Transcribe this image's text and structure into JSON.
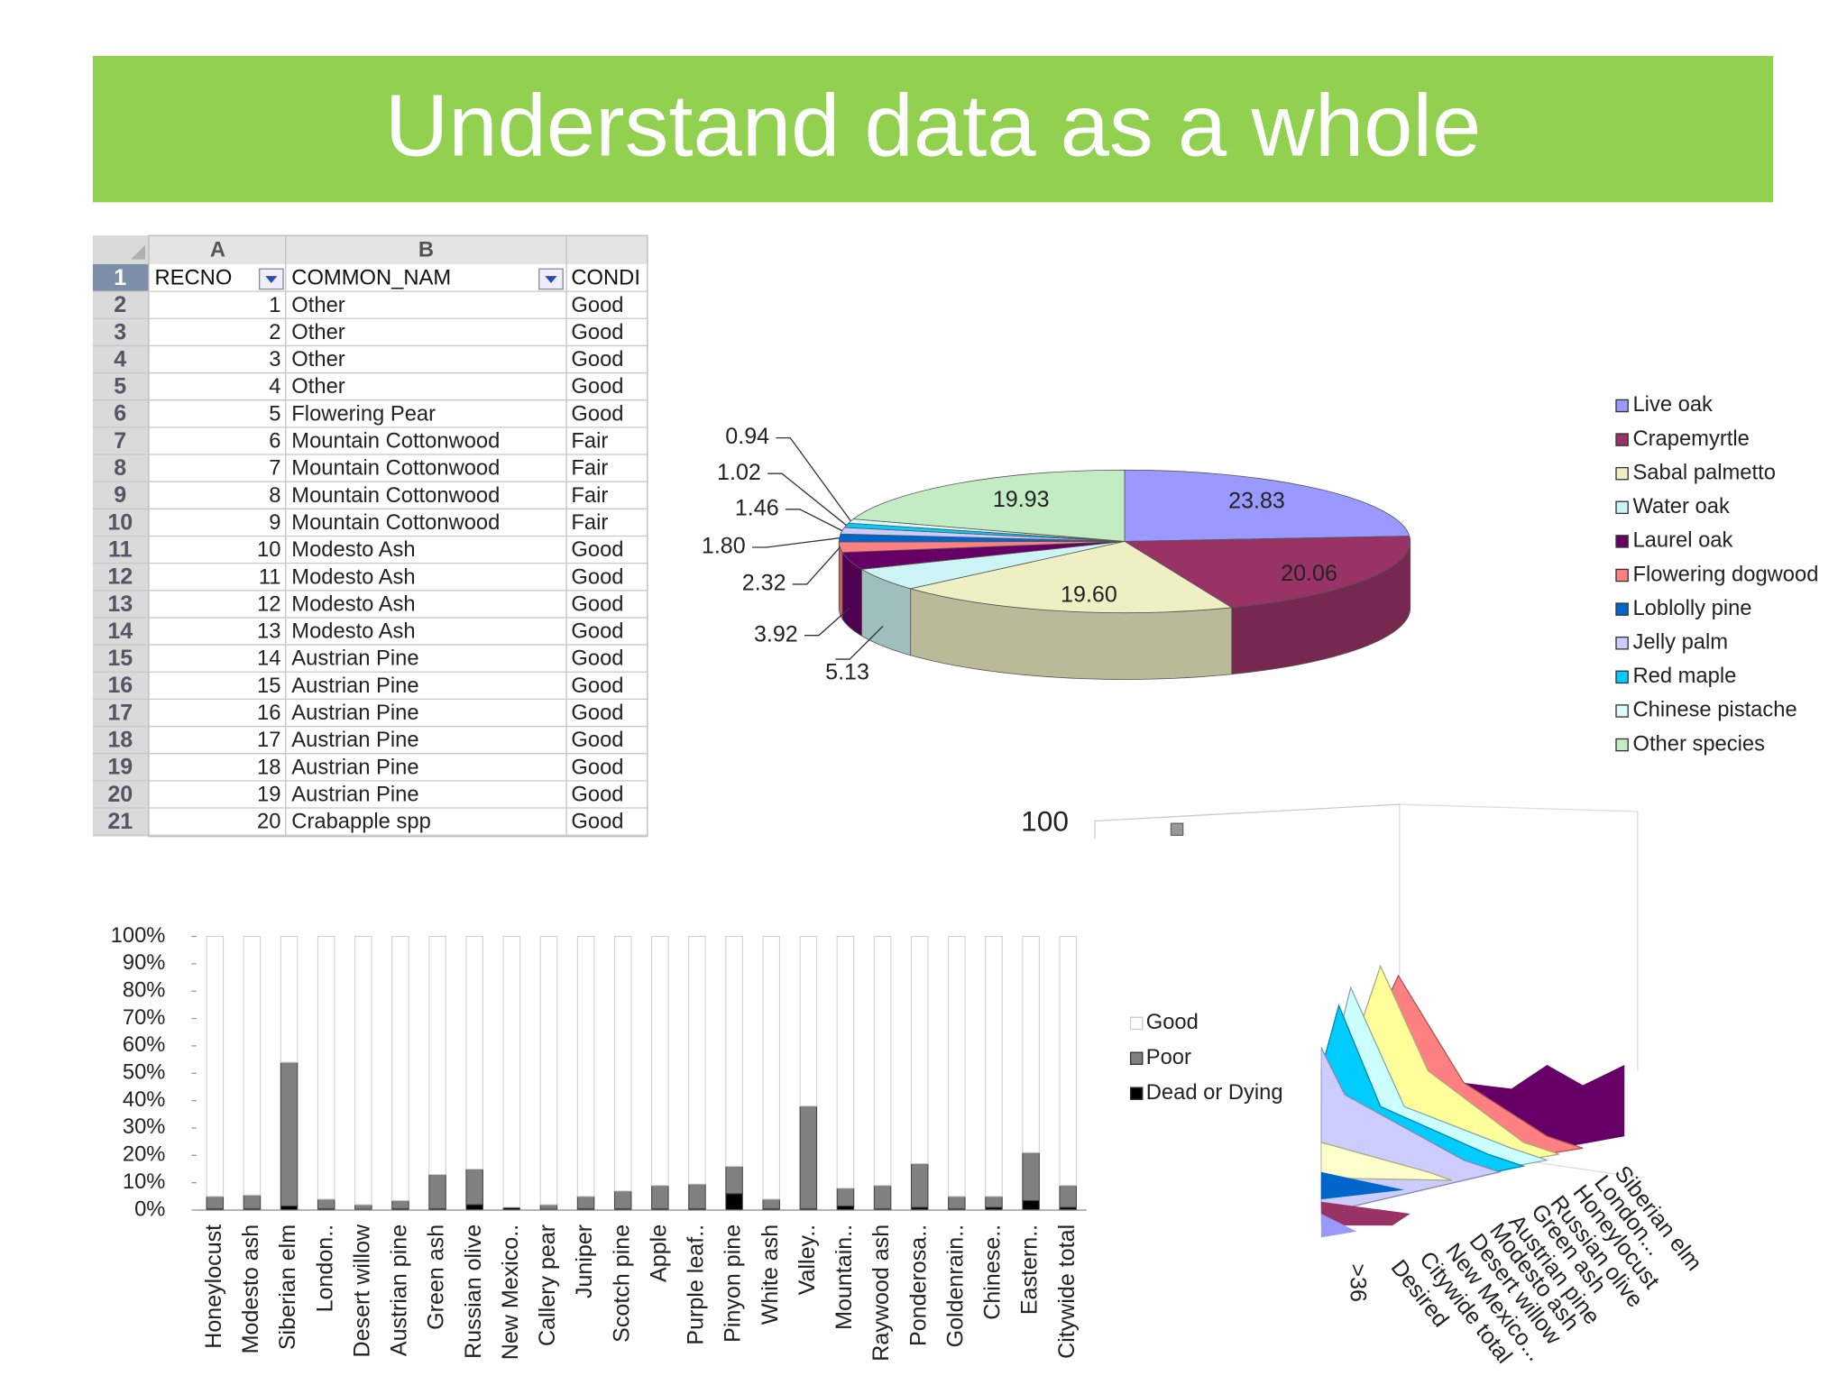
{
  "title": "Understand data as a whole",
  "table": {
    "columns": [
      "A",
      "B"
    ],
    "header": [
      "RECNO",
      "COMMON_NAM",
      "CONDI"
    ],
    "row_numbers": [
      1,
      2,
      3,
      4,
      5,
      6,
      7,
      8,
      9,
      10,
      11,
      12,
      13,
      14,
      15,
      16,
      17,
      18,
      19,
      20,
      21
    ],
    "rows": [
      [
        1,
        "Other",
        "Good"
      ],
      [
        2,
        "Other",
        "Good"
      ],
      [
        3,
        "Other",
        "Good"
      ],
      [
        4,
        "Other",
        "Good"
      ],
      [
        5,
        "Flowering Pear",
        "Good"
      ],
      [
        6,
        "Mountain Cottonwood",
        "Fair"
      ],
      [
        7,
        "Mountain Cottonwood",
        "Fair"
      ],
      [
        8,
        "Mountain Cottonwood",
        "Fair"
      ],
      [
        9,
        "Mountain Cottonwood",
        "Fair"
      ],
      [
        10,
        "Modesto Ash",
        "Good"
      ],
      [
        11,
        "Modesto Ash",
        "Good"
      ],
      [
        12,
        "Modesto Ash",
        "Good"
      ],
      [
        13,
        "Modesto Ash",
        "Good"
      ],
      [
        14,
        "Austrian Pine",
        "Good"
      ],
      [
        15,
        "Austrian Pine",
        "Good"
      ],
      [
        16,
        "Austrian Pine",
        "Good"
      ],
      [
        17,
        "Austrian Pine",
        "Good"
      ],
      [
        18,
        "Austrian Pine",
        "Good"
      ],
      [
        19,
        "Austrian Pine",
        "Good"
      ],
      [
        20,
        "Crabapple spp",
        "Good"
      ]
    ]
  },
  "chart_data": [
    {
      "type": "pie",
      "categories": [
        "Live oak",
        "Crapemyrtle",
        "Sabal palmetto",
        "Water oak",
        "Laurel oak",
        "Flowering dogwood",
        "Loblolly pine",
        "Jelly palm",
        "Red maple",
        "Chinese pistache",
        "Other species"
      ],
      "values": [
        23.83,
        20.06,
        19.6,
        5.13,
        3.92,
        2.32,
        1.8,
        1.46,
        1.02,
        0.94,
        19.93
      ],
      "value_labels": [
        "23.83",
        "20.06",
        "19.60",
        "5.13",
        "3.92",
        "2.32",
        "1.80",
        "1.46",
        "1.02",
        "0.94",
        "19.93"
      ],
      "colors": [
        "#9999ff",
        "#993366",
        "#efefc4",
        "#ccf4f4",
        "#660066",
        "#ff8080",
        "#0066cc",
        "#ccccff",
        "#00ccff",
        "#dcfafa",
        "#c4ecc4"
      ],
      "legend": "right"
    },
    {
      "type": "bar",
      "stacked": true,
      "categories": [
        "Honeylocust",
        "Modesto ash",
        "Siberian elm",
        "London..",
        "Desert willow",
        "Austrian pine",
        "Green ash",
        "Russian olive",
        "New Mexico..",
        "Callery pear",
        "Juniper",
        "Scotch pine",
        "Apple",
        "Purple leaf..",
        "Pinyon pine",
        "White ash",
        "Valley..",
        "Mountain..",
        "Raywood ash",
        "Ponderosa..",
        "Goldenrain..",
        "Chinese..",
        "Eastern..",
        "Citywide total"
      ],
      "series": [
        {
          "name": "Good",
          "color": "#ffffff",
          "values": [
            95,
            94.5,
            46,
            96,
            98,
            96.5,
            87,
            85,
            99,
            98,
            95,
            93,
            91,
            90.5,
            84,
            96,
            62,
            92,
            91,
            83,
            95,
            95,
            79,
            91
          ]
        },
        {
          "name": "Poor",
          "color": "#808080",
          "values": [
            4.5,
            5,
            52.5,
            3.5,
            1.7,
            3,
            12.5,
            13,
            0,
            1.7,
            4.5,
            6.5,
            8.5,
            9,
            10,
            3.5,
            37.5,
            6.5,
            8.5,
            16,
            4.5,
            4,
            17.5,
            8
          ]
        },
        {
          "name": "Dead or Dying",
          "color": "#000000",
          "values": [
            0.5,
            0.5,
            1.5,
            0.5,
            0.3,
            0.5,
            0.5,
            2,
            1,
            0.3,
            0.5,
            0.5,
            0.5,
            0.5,
            6,
            0.5,
            0.5,
            1.5,
            0.5,
            1,
            0.5,
            1,
            3.5,
            1
          ]
        }
      ],
      "ylim": [
        0,
        100
      ],
      "yticks": [
        {
          "value": 0,
          "label": "0%"
        },
        {
          "value": 10,
          "label": "10%"
        },
        {
          "value": 20,
          "label": "20%"
        },
        {
          "value": 30,
          "label": "30%"
        },
        {
          "value": 40,
          "label": "40%"
        },
        {
          "value": 50,
          "label": "50%"
        },
        {
          "value": 60,
          "label": "60%"
        },
        {
          "value": 70,
          "label": "70%"
        },
        {
          "value": 80,
          "label": "80%"
        },
        {
          "value": 90,
          "label": "90%"
        },
        {
          "value": 100,
          "label": "100%"
        }
      ],
      "legend": "right"
    },
    {
      "type": "area3d",
      "yticks": [
        100
      ],
      "categories": [
        "Siberian elm",
        "London...",
        "Honeylocust",
        "Russian olive",
        "Green ash",
        "Austrian pine",
        "Modesto ash",
        "Desert willow",
        "New Mexico...",
        "Citywide total",
        "Desired",
        ">36"
      ]
    }
  ]
}
